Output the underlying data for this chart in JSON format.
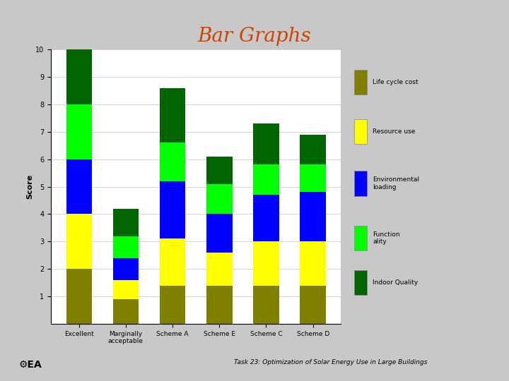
{
  "title": "Bar Graphs",
  "ylabel": "Score",
  "subtitle": "Task 23: Optimization of Solar Energy Use in Large Buildings",
  "categories": [
    "Excellent",
    "Marginally\nacceptable",
    "Scheme A",
    "Scheme E",
    "Scheme C",
    "Scheme D"
  ],
  "series": {
    "Life cycle cost": [
      2.0,
      0.9,
      1.4,
      1.4,
      1.4,
      1.4
    ],
    "Resource use": [
      2.0,
      0.7,
      1.7,
      1.2,
      1.6,
      1.6
    ],
    "Environmental loading": [
      2.0,
      0.8,
      2.1,
      1.4,
      1.7,
      1.8
    ],
    "Functionality": [
      2.0,
      0.8,
      1.4,
      1.1,
      1.1,
      1.0
    ],
    "Indoor Quality": [
      2.0,
      1.0,
      2.0,
      1.0,
      1.5,
      1.1
    ]
  },
  "colors": {
    "Life cycle cost": "#808000",
    "Resource use": "#ffff00",
    "Environmental loading": "#0000ff",
    "Functionality": "#00ff00",
    "Indoor Quality": "#006400"
  },
  "ylim": [
    0,
    10
  ],
  "yticks": [
    1,
    2,
    3,
    4,
    5,
    6,
    7,
    8,
    9,
    10
  ],
  "title_color": "#cc4400",
  "title_fontsize": 20,
  "background_color": "#c8c8c8",
  "plot_bg": "#ffffff",
  "bar_width": 0.55,
  "grid_color": "#cccccc"
}
